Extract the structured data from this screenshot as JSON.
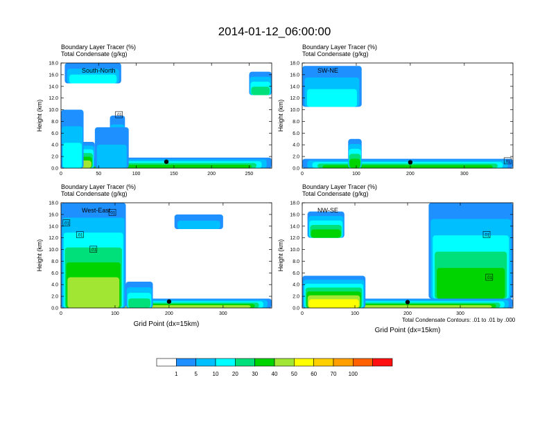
{
  "figure": {
    "title": "2014-01-12_06:00:00",
    "contour_note": "Total Condensate Contours: .01 to .01 by .000"
  },
  "colors": {
    "scale": [
      "#ffffff",
      "#1e90ff",
      "#00bfff",
      "#00ffff",
      "#00e07a",
      "#00d400",
      "#a0e632",
      "#ffff00",
      "#ffd000",
      "#ffa000",
      "#ff6000",
      "#ff1010"
    ],
    "contour": "#000000",
    "frame": "#000000"
  },
  "colorbar": {
    "labels": [
      "1",
      "5",
      "10",
      "20",
      "30",
      "40",
      "50",
      "60",
      "70",
      "100"
    ]
  },
  "chart_data": [
    {
      "type": "heatmap",
      "field1": "Boundary Layer Tracer    (%)",
      "field2": "Total Condensate   (g/kg)",
      "section": "South-North",
      "xlabel": "",
      "ylabel": "Height (km)",
      "xlim": [
        0,
        280
      ],
      "ylim": [
        0,
        18
      ],
      "xticks": [
        0,
        50,
        100,
        150,
        200,
        250
      ],
      "yticks": [
        "0.0",
        "2.0",
        "4.0",
        "6.0",
        "8.0",
        "10.0",
        "12.0",
        "14.0",
        "16.0",
        "18.0"
      ],
      "contour_labels": [
        {
          "x": 77,
          "y": 9.1,
          "text": ".01"
        }
      ],
      "markers": [
        {
          "x": 140,
          "y": 1.1
        }
      ],
      "tracer_regions": [
        {
          "x0": 0,
          "x1": 280,
          "ytop": 1.8,
          "pct": 30
        },
        {
          "x0": 0,
          "x1": 45,
          "ytop": 4.5,
          "pct": 40
        },
        {
          "x0": 0,
          "x1": 30,
          "ytop": 10,
          "pct": 10
        },
        {
          "x0": 65,
          "x1": 85,
          "ytop": 9,
          "pct": 30
        },
        {
          "x0": 45,
          "x1": 90,
          "ytop": 7,
          "pct": 5
        },
        {
          "x0": 5,
          "x1": 80,
          "ytop": 18,
          "ybot": 14.5,
          "pct": 10
        },
        {
          "x0": 250,
          "x1": 280,
          "ytop": 16.5,
          "ybot": 12.5,
          "pct": 20
        }
      ]
    },
    {
      "type": "heatmap",
      "field1": "Boundary Layer Tracer    (%)",
      "field2": "Total Condensate   (g/kg)",
      "section": "SW-NE",
      "xlabel": "",
      "ylabel": "Height (km)",
      "xlim": [
        0,
        390
      ],
      "ylim": [
        0,
        18
      ],
      "xticks": [
        0,
        100,
        200,
        300
      ],
      "yticks": [
        "0.0",
        "2.0",
        "4.0",
        "6.0",
        "8.0",
        "10.0",
        "12.0",
        "14.0",
        "16.0",
        "18.0"
      ],
      "contour_labels": [
        {
          "x": 380,
          "y": 1.2,
          "text": ".01"
        }
      ],
      "markers": [
        {
          "x": 200,
          "y": 1.0
        }
      ],
      "tracer_regions": [
        {
          "x0": 0,
          "x1": 390,
          "ytop": 1.6,
          "pct": 30
        },
        {
          "x0": 85,
          "x1": 110,
          "ytop": 5,
          "pct": 30
        },
        {
          "x0": 0,
          "x1": 110,
          "ytop": 17.5,
          "ybot": 10.5,
          "pct": 10
        }
      ]
    },
    {
      "type": "heatmap",
      "field1": "Boundary Layer Tracer    (%)",
      "field2": "Total Condensate   (g/kg)",
      "section": "West-East",
      "xlabel": "Grid Point (dx=15km)",
      "ylabel": "Height (km)",
      "xlim": [
        0,
        390
      ],
      "ylim": [
        0,
        18
      ],
      "xticks": [
        0,
        100,
        200,
        300
      ],
      "yticks": [
        "0.0",
        "2.0",
        "4.0",
        "6.0",
        "8.0",
        "10.0",
        "12.0",
        "14.0",
        "16.0",
        "18.0"
      ],
      "contour_labels": [
        {
          "x": 10,
          "y": 14.5,
          "text": ".01"
        },
        {
          "x": 35,
          "y": 12.5,
          "text": ".01"
        },
        {
          "x": 60,
          "y": 10,
          "text": ".01"
        },
        {
          "x": 95,
          "y": 16.3,
          "text": ".01"
        }
      ],
      "markers": [
        {
          "x": 200,
          "y": 1.1
        }
      ],
      "tracer_regions": [
        {
          "x0": 0,
          "x1": 390,
          "ytop": 1.6,
          "pct": 40
        },
        {
          "x0": 0,
          "x1": 120,
          "ytop": 18,
          "pct": 40
        },
        {
          "x0": 120,
          "x1": 170,
          "ytop": 4.5,
          "pct": 20
        },
        {
          "x0": 210,
          "x1": 300,
          "ytop": 16,
          "ybot": 13.5,
          "pct": 5
        }
      ]
    },
    {
      "type": "heatmap",
      "field1": "Boundary Layer Tracer    (%)",
      "field2": "Total Condensate   (g/kg)",
      "section": "NW-SE",
      "xlabel": "Grid Point (dx=15km)",
      "ylabel": "Height (km)",
      "xlim": [
        0,
        400
      ],
      "ylim": [
        0,
        18
      ],
      "xticks": [
        0,
        100,
        200,
        300
      ],
      "yticks": [
        "0.0",
        "2.0",
        "4.0",
        "6.0",
        "8.0",
        "10.0",
        "12.0",
        "14.0",
        "16.0",
        "18.0"
      ],
      "contour_labels": [
        {
          "x": 350,
          "y": 12.5,
          "text": ".01"
        },
        {
          "x": 355,
          "y": 5.2,
          "text": ".01"
        }
      ],
      "markers": [
        {
          "x": 200,
          "y": 1.0
        }
      ],
      "tracer_regions": [
        {
          "x0": 0,
          "x1": 400,
          "ytop": 1.6,
          "pct": 40
        },
        {
          "x0": 0,
          "x1": 120,
          "ytop": 5.5,
          "pct": 50
        },
        {
          "x0": 10,
          "x1": 80,
          "ytop": 16.5,
          "ybot": 12,
          "pct": 30
        },
        {
          "x0": 240,
          "x1": 400,
          "ytop": 18,
          "ybot": 1.6,
          "pct": 30
        }
      ]
    }
  ]
}
